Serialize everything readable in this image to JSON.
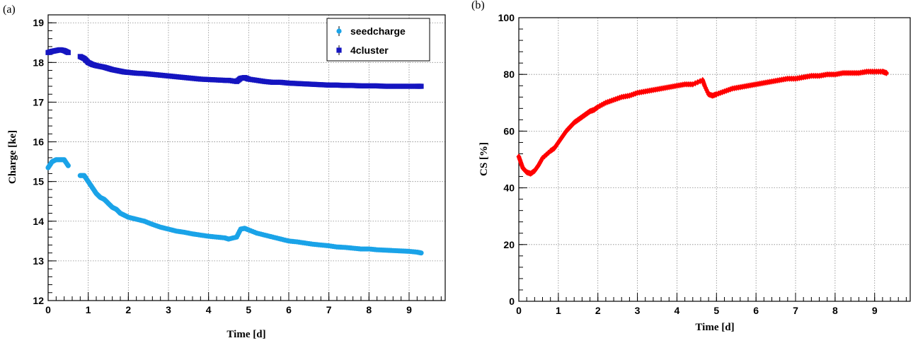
{
  "panels": {
    "a": {
      "label": "(a)"
    },
    "b": {
      "label": "(b)"
    }
  },
  "chart_data": [
    {
      "type": "scatter",
      "panel": "(a)",
      "xlabel": "Time [d]",
      "ylabel": "Charge [ke]",
      "xlim": [
        0,
        9.9
      ],
      "ylim": [
        12,
        19.2
      ],
      "xticks": [
        "0",
        "1",
        "2",
        "3",
        "4",
        "5",
        "6",
        "7",
        "8",
        "9"
      ],
      "yticks": [
        "12",
        "13",
        "14",
        "15",
        "16",
        "17",
        "18",
        "19"
      ],
      "grid": true,
      "legend_position": "top-right",
      "series": [
        {
          "name": "seedcharge",
          "marker": "circle",
          "color": "#1aa3e8",
          "points": [
            [
              0.0,
              15.35
            ],
            [
              0.1,
              15.5
            ],
            [
              0.2,
              15.55
            ],
            [
              0.3,
              15.55
            ],
            [
              0.4,
              15.55
            ],
            [
              0.5,
              15.4
            ],
            [
              0.8,
              15.15
            ],
            [
              0.9,
              15.15
            ],
            [
              1.0,
              15.0
            ],
            [
              1.1,
              14.85
            ],
            [
              1.2,
              14.7
            ],
            [
              1.3,
              14.6
            ],
            [
              1.4,
              14.55
            ],
            [
              1.5,
              14.45
            ],
            [
              1.6,
              14.35
            ],
            [
              1.7,
              14.3
            ],
            [
              1.8,
              14.2
            ],
            [
              1.9,
              14.15
            ],
            [
              2.0,
              14.1
            ],
            [
              2.2,
              14.05
            ],
            [
              2.4,
              14.0
            ],
            [
              2.6,
              13.92
            ],
            [
              2.8,
              13.85
            ],
            [
              3.0,
              13.8
            ],
            [
              3.2,
              13.75
            ],
            [
              3.4,
              13.72
            ],
            [
              3.6,
              13.68
            ],
            [
              3.8,
              13.65
            ],
            [
              4.0,
              13.62
            ],
            [
              4.2,
              13.6
            ],
            [
              4.4,
              13.58
            ],
            [
              4.5,
              13.55
            ],
            [
              4.7,
              13.6
            ],
            [
              4.8,
              13.8
            ],
            [
              4.9,
              13.82
            ],
            [
              5.0,
              13.78
            ],
            [
              5.2,
              13.7
            ],
            [
              5.4,
              13.65
            ],
            [
              5.6,
              13.6
            ],
            [
              5.8,
              13.55
            ],
            [
              6.0,
              13.5
            ],
            [
              6.2,
              13.48
            ],
            [
              6.4,
              13.45
            ],
            [
              6.6,
              13.42
            ],
            [
              6.8,
              13.4
            ],
            [
              7.0,
              13.38
            ],
            [
              7.2,
              13.35
            ],
            [
              7.4,
              13.34
            ],
            [
              7.6,
              13.32
            ],
            [
              7.8,
              13.3
            ],
            [
              8.0,
              13.3
            ],
            [
              8.2,
              13.28
            ],
            [
              8.4,
              13.27
            ],
            [
              8.6,
              13.26
            ],
            [
              8.8,
              13.25
            ],
            [
              9.0,
              13.24
            ],
            [
              9.2,
              13.22
            ],
            [
              9.3,
              13.2
            ]
          ]
        },
        {
          "name": "4cluster",
          "marker": "square",
          "color": "#1515c0",
          "points": [
            [
              0.0,
              18.25
            ],
            [
              0.1,
              18.28
            ],
            [
              0.2,
              18.3
            ],
            [
              0.3,
              18.32
            ],
            [
              0.4,
              18.3
            ],
            [
              0.5,
              18.25
            ],
            [
              0.8,
              18.15
            ],
            [
              0.9,
              18.1
            ],
            [
              1.0,
              18.0
            ],
            [
              1.1,
              17.95
            ],
            [
              1.2,
              17.92
            ],
            [
              1.3,
              17.9
            ],
            [
              1.4,
              17.88
            ],
            [
              1.5,
              17.85
            ],
            [
              1.6,
              17.82
            ],
            [
              1.7,
              17.8
            ],
            [
              1.8,
              17.78
            ],
            [
              1.9,
              17.76
            ],
            [
              2.0,
              17.75
            ],
            [
              2.2,
              17.73
            ],
            [
              2.4,
              17.72
            ],
            [
              2.6,
              17.7
            ],
            [
              2.8,
              17.68
            ],
            [
              3.0,
              17.66
            ],
            [
              3.2,
              17.64
            ],
            [
              3.4,
              17.62
            ],
            [
              3.6,
              17.6
            ],
            [
              3.8,
              17.58
            ],
            [
              4.0,
              17.57
            ],
            [
              4.2,
              17.56
            ],
            [
              4.4,
              17.55
            ],
            [
              4.5,
              17.55
            ],
            [
              4.7,
              17.52
            ],
            [
              4.8,
              17.6
            ],
            [
              4.9,
              17.62
            ],
            [
              5.0,
              17.58
            ],
            [
              5.2,
              17.55
            ],
            [
              5.4,
              17.52
            ],
            [
              5.6,
              17.5
            ],
            [
              5.8,
              17.5
            ],
            [
              6.0,
              17.48
            ],
            [
              6.2,
              17.47
            ],
            [
              6.4,
              17.46
            ],
            [
              6.6,
              17.45
            ],
            [
              6.8,
              17.44
            ],
            [
              7.0,
              17.43
            ],
            [
              7.2,
              17.43
            ],
            [
              7.4,
              17.42
            ],
            [
              7.6,
              17.42
            ],
            [
              7.8,
              17.41
            ],
            [
              8.0,
              17.41
            ],
            [
              8.2,
              17.41
            ],
            [
              8.4,
              17.4
            ],
            [
              8.6,
              17.4
            ],
            [
              8.8,
              17.4
            ],
            [
              9.0,
              17.4
            ],
            [
              9.2,
              17.4
            ],
            [
              9.3,
              17.4
            ]
          ]
        }
      ]
    },
    {
      "type": "scatter",
      "panel": "(b)",
      "xlabel": "Time [d]",
      "ylabel": "CS [%]",
      "xlim": [
        0,
        9.9
      ],
      "ylim": [
        0,
        100
      ],
      "xticks": [
        "0",
        "1",
        "2",
        "3",
        "4",
        "5",
        "6",
        "7",
        "8",
        "9"
      ],
      "yticks": [
        "0",
        "20",
        "40",
        "60",
        "80",
        "100"
      ],
      "grid": true,
      "series": [
        {
          "marker": "diamond",
          "color": "#ff0000",
          "points": [
            [
              0.0,
              51
            ],
            [
              0.05,
              49
            ],
            [
              0.1,
              47
            ],
            [
              0.2,
              45.5
            ],
            [
              0.3,
              45
            ],
            [
              0.4,
              46
            ],
            [
              0.5,
              48
            ],
            [
              0.6,
              50.5
            ],
            [
              0.8,
              53
            ],
            [
              0.9,
              54
            ],
            [
              1.0,
              56
            ],
            [
              1.1,
              58
            ],
            [
              1.2,
              60
            ],
            [
              1.3,
              61.5
            ],
            [
              1.4,
              63
            ],
            [
              1.5,
              64
            ],
            [
              1.6,
              65
            ],
            [
              1.7,
              66
            ],
            [
              1.8,
              67
            ],
            [
              1.9,
              67.5
            ],
            [
              2.0,
              68.5
            ],
            [
              2.2,
              70
            ],
            [
              2.4,
              71
            ],
            [
              2.6,
              72
            ],
            [
              2.8,
              72.5
            ],
            [
              3.0,
              73.5
            ],
            [
              3.2,
              74
            ],
            [
              3.4,
              74.5
            ],
            [
              3.6,
              75
            ],
            [
              3.8,
              75.5
            ],
            [
              4.0,
              76
            ],
            [
              4.2,
              76.5
            ],
            [
              4.4,
              76.5
            ],
            [
              4.65,
              78
            ],
            [
              4.7,
              76
            ],
            [
              4.8,
              73
            ],
            [
              4.9,
              72.5
            ],
            [
              5.0,
              73
            ],
            [
              5.2,
              74
            ],
            [
              5.4,
              75
            ],
            [
              5.6,
              75.5
            ],
            [
              5.8,
              76
            ],
            [
              6.0,
              76.5
            ],
            [
              6.2,
              77
            ],
            [
              6.4,
              77.5
            ],
            [
              6.6,
              78
            ],
            [
              6.8,
              78.5
            ],
            [
              7.0,
              78.5
            ],
            [
              7.2,
              79
            ],
            [
              7.4,
              79.5
            ],
            [
              7.6,
              79.5
            ],
            [
              7.8,
              80
            ],
            [
              8.0,
              80
            ],
            [
              8.2,
              80.5
            ],
            [
              8.4,
              80.5
            ],
            [
              8.6,
              80.5
            ],
            [
              8.8,
              81
            ],
            [
              9.0,
              81
            ],
            [
              9.2,
              81
            ],
            [
              9.3,
              80.5
            ]
          ]
        }
      ]
    }
  ]
}
